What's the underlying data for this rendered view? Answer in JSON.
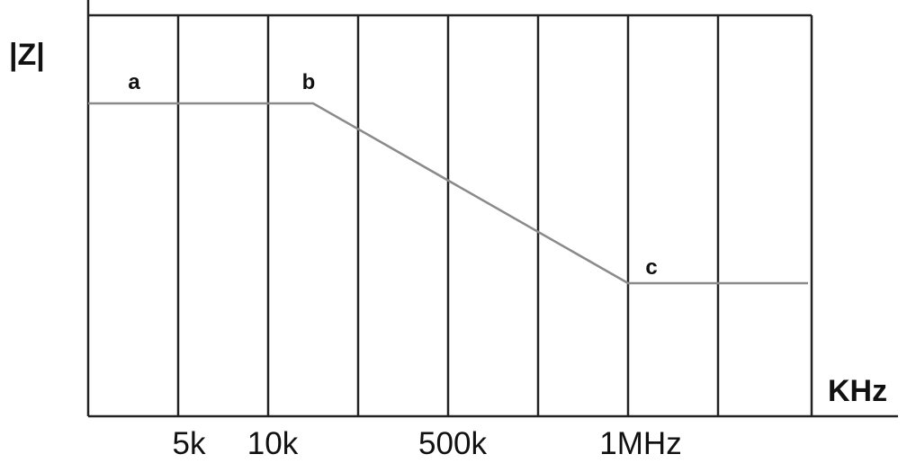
{
  "chart_data": {
    "type": "line",
    "title": "",
    "ylabel": "|Z|",
    "xlabel": "KHz",
    "x_tick_labels": [
      "5k",
      "10k",
      "500k",
      "1MHz"
    ],
    "grid": true,
    "legend": "none",
    "line_color": "#8a8a8a",
    "grid_color": "#222222",
    "series": [
      {
        "points": [
          {
            "x": "start",
            "y": 1.0
          },
          {
            "x": "b",
            "y": 1.0
          },
          {
            "x": "1MHz",
            "y": 0.0
          },
          {
            "x": "end",
            "y": 0.0
          }
        ]
      }
    ],
    "point_labels": [
      "a",
      "b",
      "c"
    ]
  }
}
